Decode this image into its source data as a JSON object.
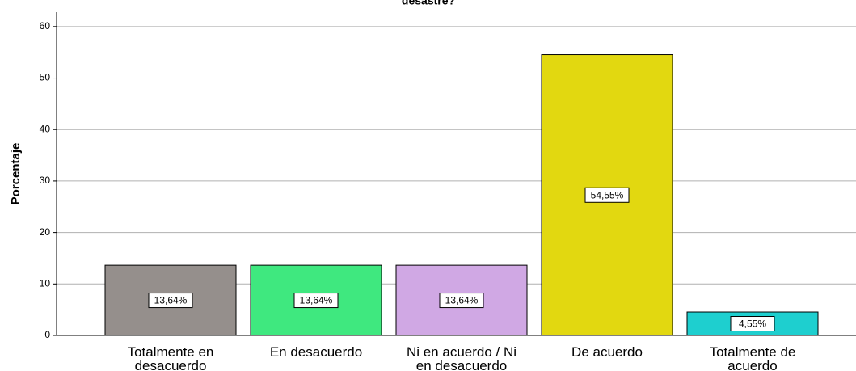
{
  "chart_data": {
    "type": "bar",
    "title": "desastre?",
    "y_label": "Porcentaje",
    "categories": [
      "Totalmente en desacuerdo",
      "En desacuerdo",
      "Ni en acuerdo / Ni en desacuerdo",
      "De acuerdo",
      "Totalmente de acuerdo"
    ],
    "values": [
      13.64,
      13.64,
      13.64,
      54.55,
      4.55
    ],
    "value_labels": [
      "13,64%",
      "13,64%",
      "13,64%",
      "54,55%",
      "4,55%"
    ],
    "colors": [
      "#958f8c",
      "#3fe87f",
      "#d0a8e4",
      "#e2d810",
      "#1ecfcf"
    ],
    "ylim": [
      0,
      62.8
    ],
    "yticks": [
      0,
      10,
      20,
      30,
      40,
      50,
      60
    ],
    "grid": true
  }
}
